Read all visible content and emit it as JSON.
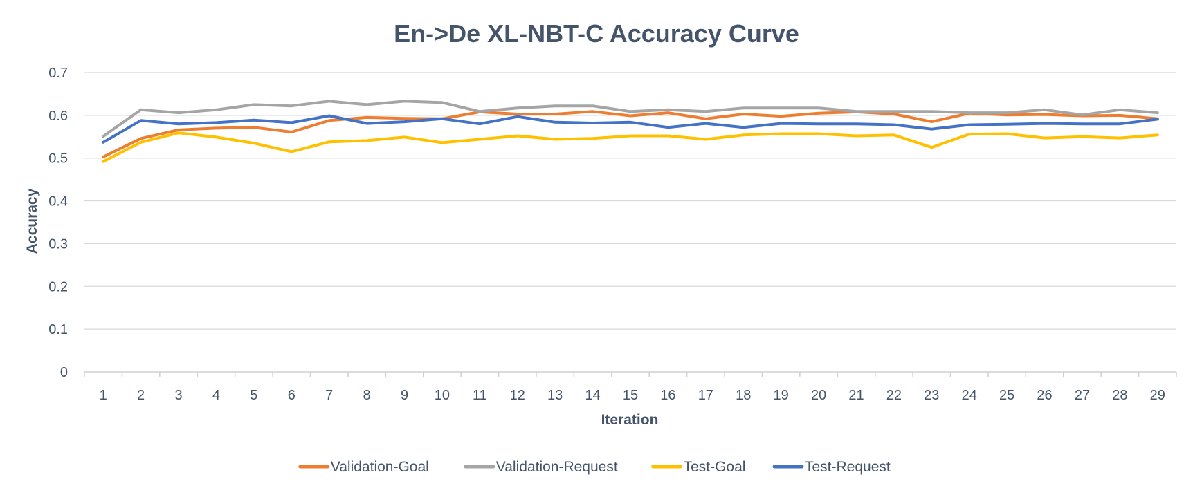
{
  "chart_data": {
    "type": "line",
    "title": "En->De XL-NBT-C Accuracy Curve",
    "xlabel": "Iteration",
    "ylabel": "Accuracy",
    "ylim": [
      0,
      0.7
    ],
    "yticks": [
      "0",
      "0.1",
      "0.2",
      "0.3",
      "0.4",
      "0.5",
      "0.6",
      "0.7"
    ],
    "grid": true,
    "legend": "bottom",
    "categories": [
      "1",
      "2",
      "3",
      "4",
      "5",
      "6",
      "7",
      "8",
      "9",
      "10",
      "11",
      "12",
      "13",
      "14",
      "15",
      "16",
      "17",
      "18",
      "19",
      "20",
      "21",
      "22",
      "23",
      "24",
      "25",
      "26",
      "27",
      "28",
      "29"
    ],
    "series": [
      {
        "name": "Validation-Goal",
        "color": "#ed7d31",
        "values": [
          0.503,
          0.546,
          0.566,
          0.57,
          0.572,
          0.561,
          0.588,
          0.595,
          0.593,
          0.592,
          0.608,
          0.603,
          0.603,
          0.609,
          0.599,
          0.606,
          0.592,
          0.603,
          0.598,
          0.605,
          0.608,
          0.603,
          0.585,
          0.605,
          0.601,
          0.602,
          0.599,
          0.6,
          0.592
        ]
      },
      {
        "name": "Validation-Request",
        "color": "#a5a5a5",
        "values": [
          0.551,
          0.613,
          0.606,
          0.613,
          0.625,
          0.622,
          0.633,
          0.625,
          0.633,
          0.63,
          0.609,
          0.617,
          0.622,
          0.622,
          0.609,
          0.613,
          0.609,
          0.617,
          0.617,
          0.617,
          0.609,
          0.609,
          0.609,
          0.606,
          0.606,
          0.613,
          0.601,
          0.613,
          0.606
        ]
      },
      {
        "name": "Test-Goal",
        "color": "#ffc000",
        "values": [
          0.492,
          0.537,
          0.559,
          0.549,
          0.535,
          0.515,
          0.538,
          0.541,
          0.549,
          0.536,
          0.544,
          0.552,
          0.544,
          0.546,
          0.552,
          0.552,
          0.544,
          0.554,
          0.557,
          0.557,
          0.552,
          0.554,
          0.525,
          0.556,
          0.557,
          0.547,
          0.55,
          0.547,
          0.554
        ]
      },
      {
        "name": "Test-Request",
        "color": "#4472c4",
        "values": [
          0.537,
          0.588,
          0.58,
          0.583,
          0.589,
          0.583,
          0.599,
          0.581,
          0.585,
          0.592,
          0.58,
          0.597,
          0.584,
          0.582,
          0.584,
          0.572,
          0.581,
          0.572,
          0.581,
          0.58,
          0.58,
          0.578,
          0.568,
          0.578,
          0.579,
          0.581,
          0.58,
          0.58,
          0.591
        ]
      }
    ]
  }
}
